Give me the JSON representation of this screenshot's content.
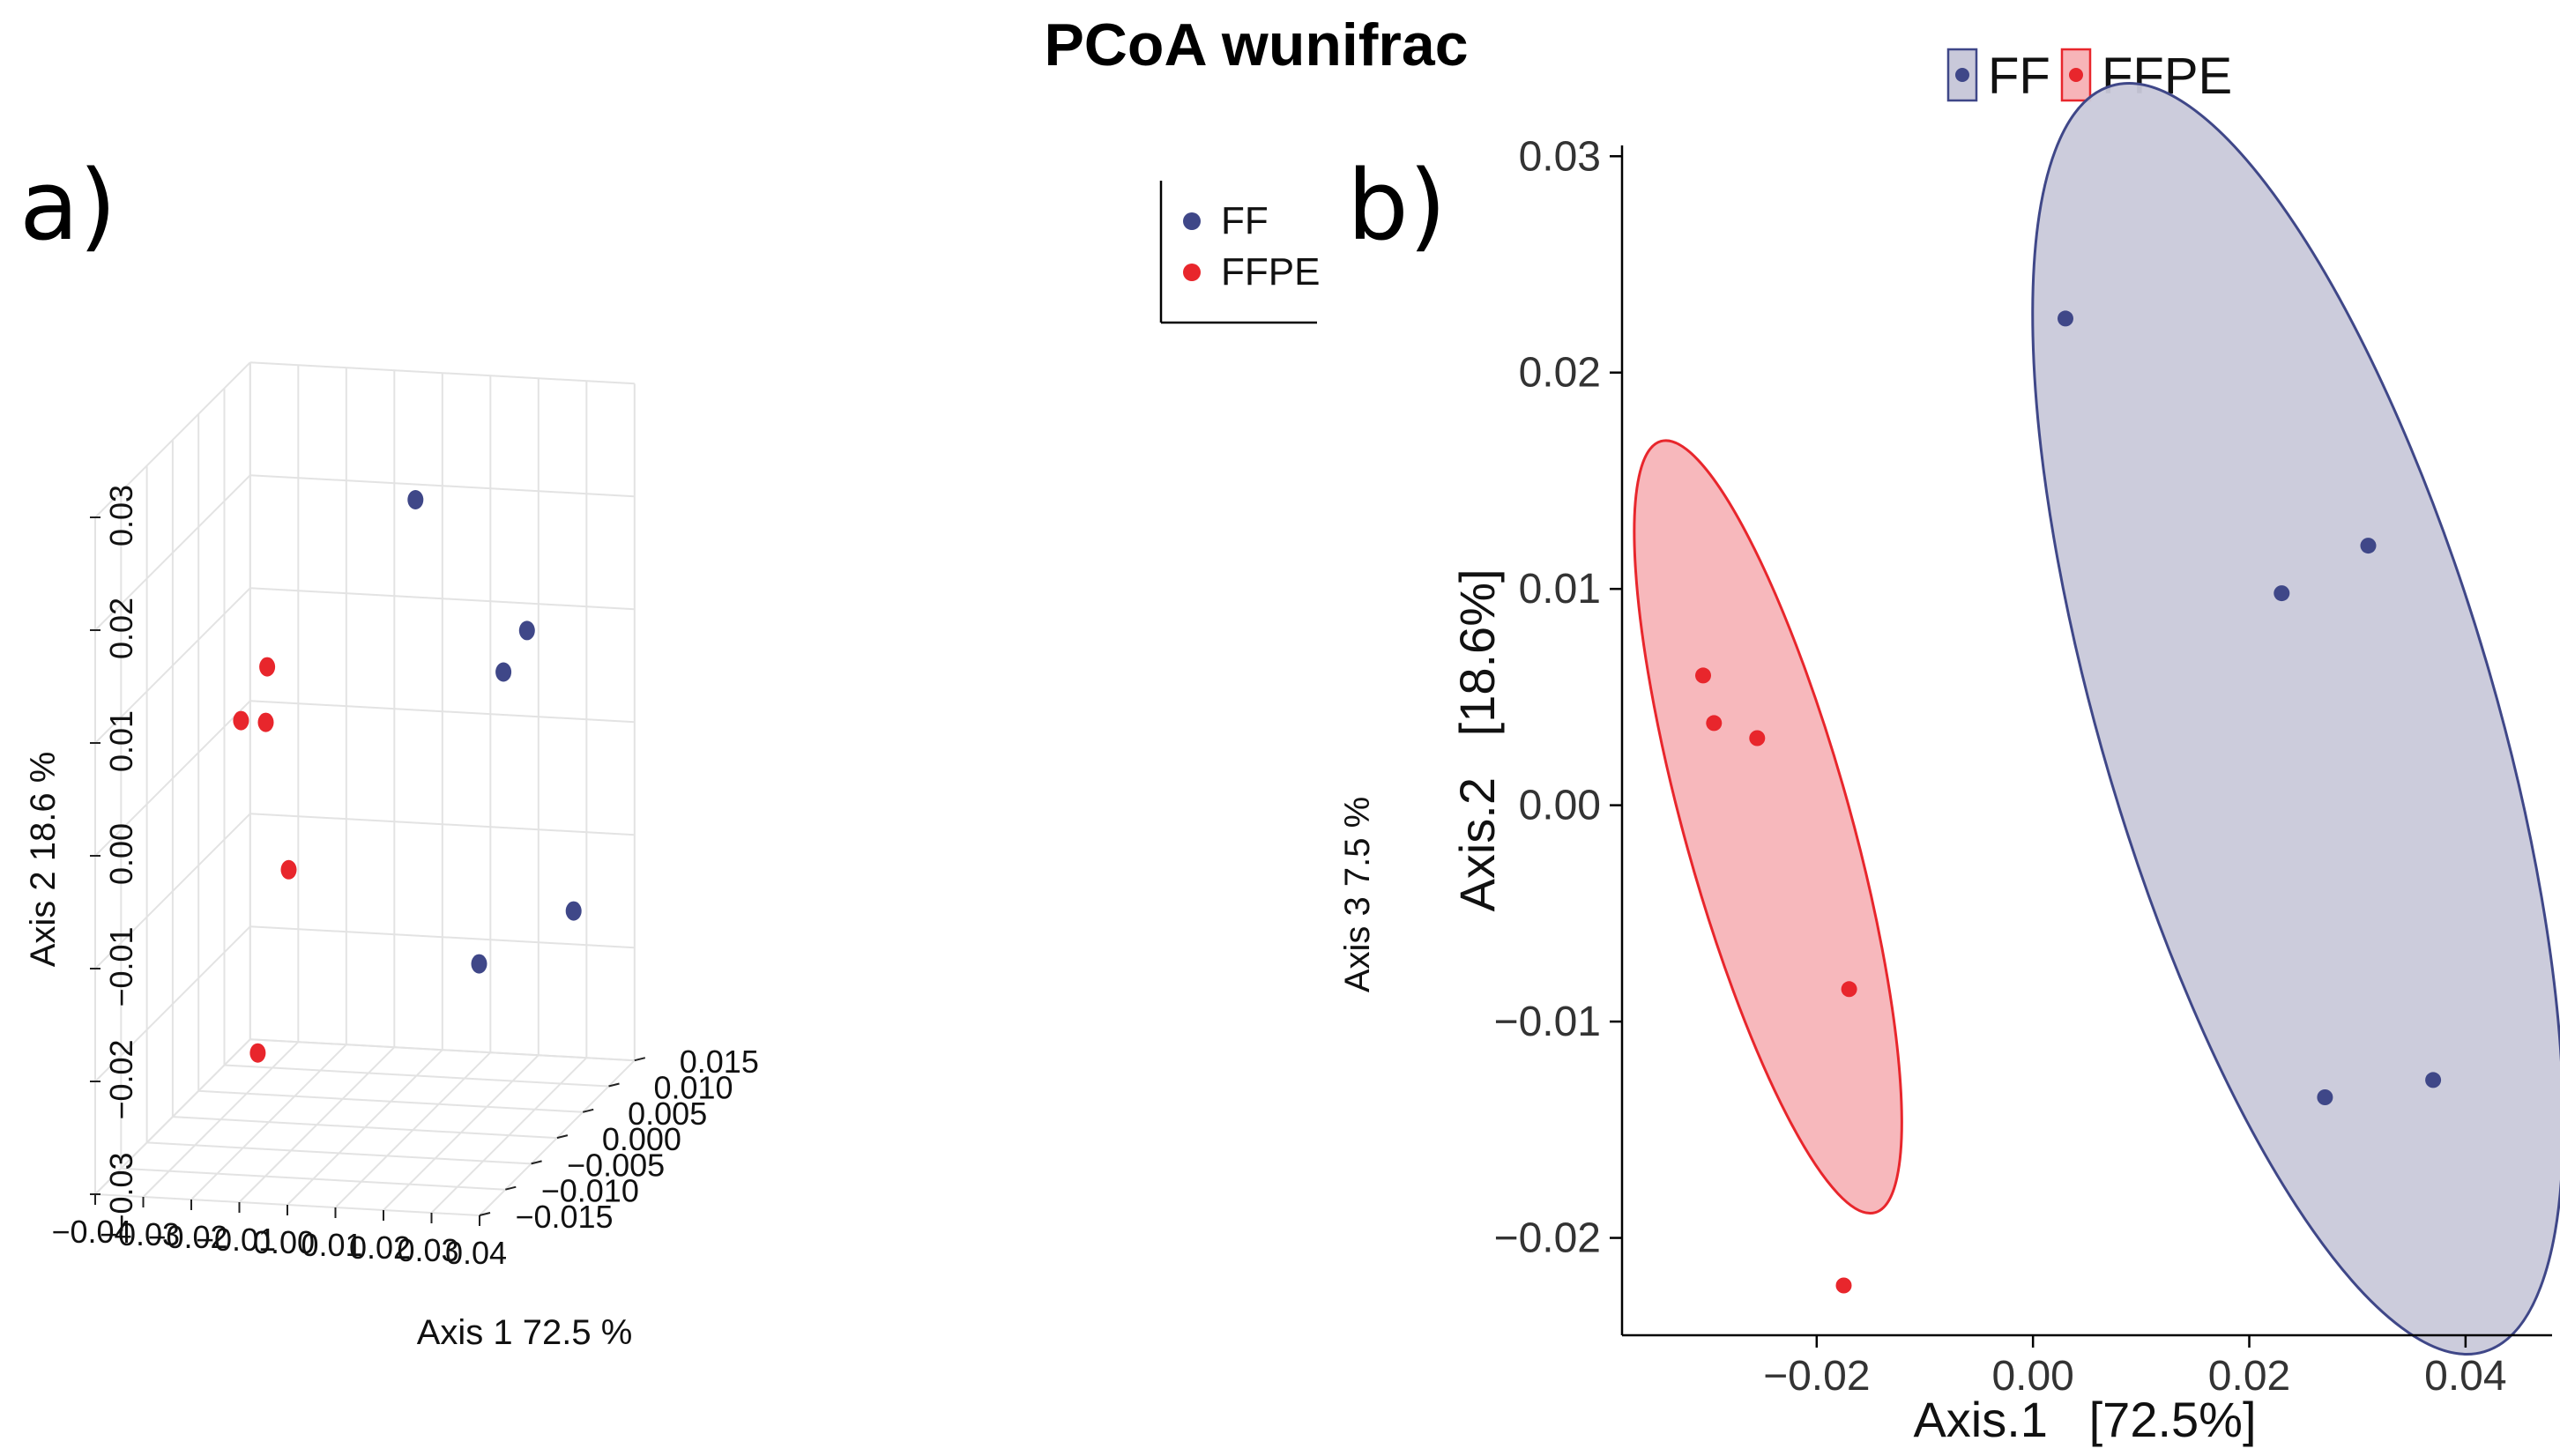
{
  "title": "PCoA wunifrac",
  "colors": {
    "FF": "#3F4788",
    "FFPE": "#E8262C",
    "FF_fill": "#C9C9DA",
    "FFPE_fill": "#F7B4B8",
    "grid": "#E3E3E3"
  },
  "panel_a": {
    "label": "a)",
    "legend": [
      "FF",
      "FFPE"
    ],
    "axes": {
      "x": {
        "label": "Axis 1 72.5 %",
        "ticks": [
          "−0.04",
          "−0.03",
          "−0.02",
          "−0.01",
          "0.00",
          "0.01",
          "0.02",
          "0.03",
          "0.04"
        ]
      },
      "y": {
        "label": "Axis 2 18.6 %",
        "ticks": [
          "−0.03",
          "−0.02",
          "−0.01",
          "0.00",
          "0.01",
          "0.02",
          "0.03"
        ]
      },
      "z": {
        "label": "Axis 3 7.5 %",
        "ticks": [
          "−0.015",
          "−0.010",
          "−0.005",
          "0.000",
          "0.005",
          "0.010",
          "0.015"
        ]
      }
    }
  },
  "panel_b": {
    "label": "b)",
    "legend": [
      "FF",
      "FFPE"
    ],
    "xlabel": "Axis.1   [72.5%]",
    "ylabel": "Axis.2   [18.6%]",
    "xticks": [
      "−0.02",
      "0.00",
      "0.02",
      "0.04"
    ],
    "yticks": [
      "−0.02",
      "−0.01",
      "0.00",
      "0.01",
      "0.02",
      "0.03"
    ]
  },
  "chart_data": [
    {
      "type": "scatter",
      "title": "PCoA wunifrac (3D)",
      "xlabel": "Axis 1 72.5 %",
      "ylabel": "Axis 2 18.6 %",
      "zlabel": "Axis 3 7.5 %",
      "xlim": [
        -0.04,
        0.04
      ],
      "ylim": [
        -0.03,
        0.03
      ],
      "zlim": [
        -0.015,
        0.015
      ],
      "series": [
        {
          "name": "FF",
          "points": [
            {
              "x": 0.003,
              "y": 0.0225,
              "z": 0.007
            },
            {
              "x": 0.031,
              "y": 0.012,
              "z": -0.002
            },
            {
              "x": 0.023,
              "y": 0.01,
              "z": 0.01
            },
            {
              "x": 0.037,
              "y": -0.0127,
              "z": 0.006
            },
            {
              "x": 0.027,
              "y": -0.0135,
              "z": -0.003
            }
          ]
        },
        {
          "name": "FFPE",
          "points": [
            {
              "x": -0.03,
              "y": 0.006,
              "z": 0.009
            },
            {
              "x": -0.029,
              "y": 0.004,
              "z": 0.003
            },
            {
              "x": -0.026,
              "y": 0.003,
              "z": 0.005
            },
            {
              "x": -0.018,
              "y": -0.0085,
              "z": 0.002
            },
            {
              "x": -0.018,
              "y": -0.022,
              "z": -0.004
            }
          ]
        }
      ]
    },
    {
      "type": "scatter",
      "title": "PCoA wunifrac",
      "xlabel": "Axis.1   [72.5%]",
      "ylabel": "Axis.2   [18.6%]",
      "xlim": [
        -0.038,
        0.048
      ],
      "ylim": [
        -0.0245,
        0.0305
      ],
      "legend": "top",
      "series": [
        {
          "name": "FF",
          "x": [
            0.003,
            0.031,
            0.023,
            0.037,
            0.027
          ],
          "y": [
            0.0225,
            0.012,
            0.0098,
            -0.0127,
            -0.0135
          ],
          "ellipse": {
            "cx": 0.0245,
            "cy": 0.004,
            "rx": 0.0182,
            "ry": 0.0305,
            "angle_deg": -16.4
          }
        },
        {
          "name": "FFPE",
          "x": [
            -0.0305,
            -0.0295,
            -0.0255,
            -0.017,
            -0.0175
          ],
          "y": [
            0.006,
            0.0038,
            0.0031,
            -0.0085,
            -0.0222
          ],
          "ellipse": {
            "cx": -0.0245,
            "cy": -0.001,
            "rx": 0.0077,
            "ry": 0.0185,
            "angle_deg": -15.5
          }
        }
      ]
    }
  ]
}
